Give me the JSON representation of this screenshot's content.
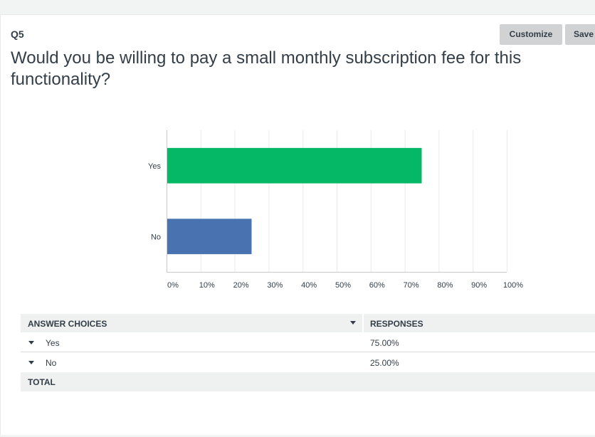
{
  "question": {
    "number": "Q5",
    "title": "Would you be willing to pay a small monthly subscription fee for this functionality?"
  },
  "toolbar": {
    "customize_label": "Customize",
    "save_label": "Save"
  },
  "chart_data": {
    "type": "bar",
    "orientation": "horizontal",
    "categories": [
      "Yes",
      "No"
    ],
    "values": [
      75,
      25
    ],
    "xlim": [
      0,
      100
    ],
    "x_ticks": [
      "0%",
      "10%",
      "20%",
      "30%",
      "40%",
      "50%",
      "60%",
      "70%",
      "80%",
      "90%",
      "100%"
    ],
    "colors": [
      "#05b865",
      "#4872b0"
    ],
    "grid": true
  },
  "table": {
    "header_choices": "ANSWER CHOICES",
    "header_responses": "RESPONSES",
    "rows": [
      {
        "choice": "Yes",
        "response": "75.00%"
      },
      {
        "choice": "No",
        "response": "25.00%"
      }
    ],
    "total_label": "TOTAL"
  }
}
